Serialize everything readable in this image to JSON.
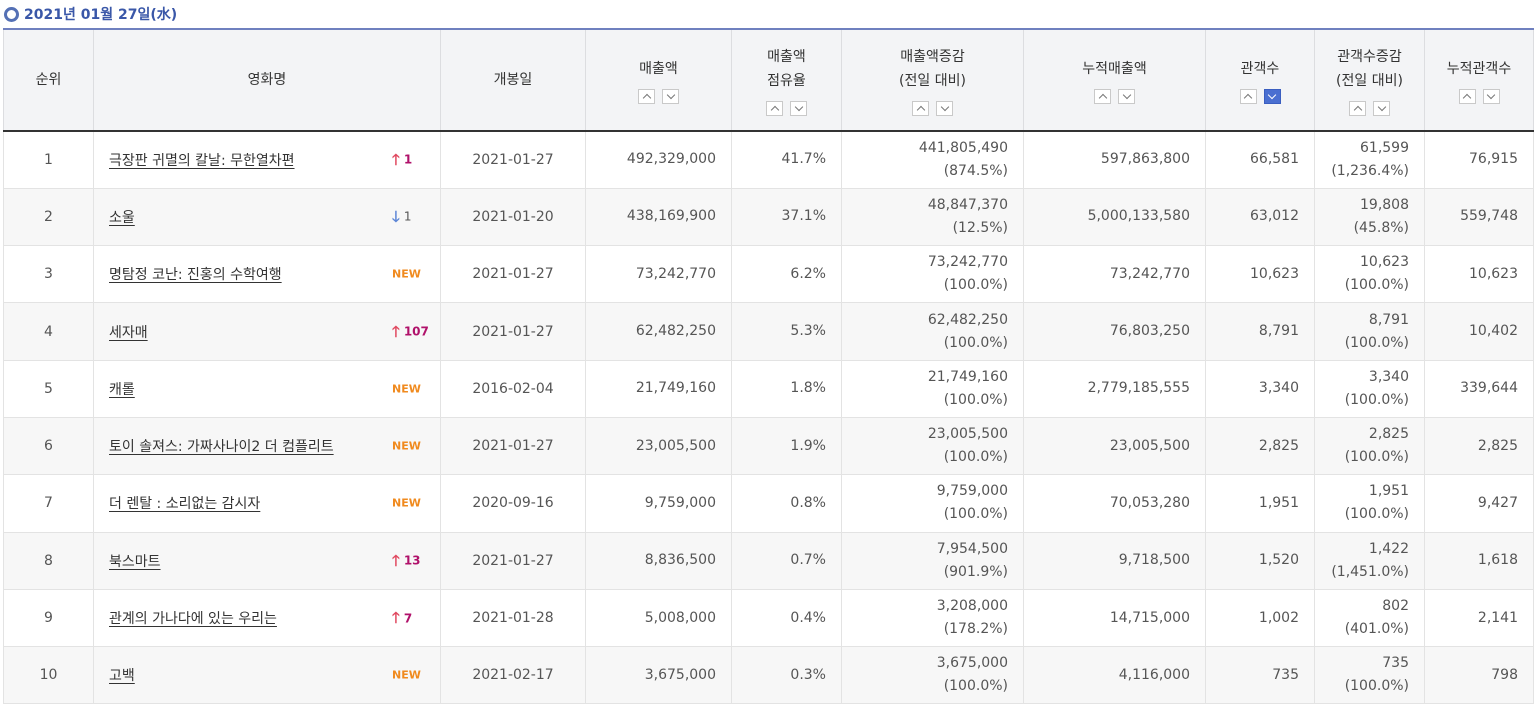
{
  "date_label": "2021년 01월 27일(水)",
  "columns": {
    "rank": "순위",
    "title": "영화명",
    "open_date": "개봉일",
    "sales": "매출액",
    "share_1": "매출액",
    "share_2": "점유율",
    "sales_diff_1": "매출액증감",
    "sales_diff_2": "(전일 대비)",
    "cum_sales": "누적매출액",
    "audience": "관객수",
    "aud_diff_1": "관객수증감",
    "aud_diff_2": "(전일 대비)",
    "cum_audience": "누적관객수"
  },
  "icons": {
    "sort_up": "chevron-up-icon",
    "sort_down": "chevron-down-icon",
    "rank_up": "arrow-up-icon",
    "rank_down": "arrow-down-icon"
  },
  "colors": {
    "accent_blue": "#3a57a8",
    "active_sort": "#4a6fd1",
    "rank_up_arrow": "#e0485f",
    "rank_up_num": "#b0116a",
    "rank_down_arrow": "#5d86d6",
    "new_badge": "#f08a1e"
  },
  "active_sort_column": "audience",
  "rows": [
    {
      "rank": "1",
      "title": "극장판 귀멸의 칼날: 무한열차편",
      "change_type": "up",
      "change_arrow": "🡑",
      "change_value": "1",
      "open_date": "2021-01-27",
      "sales": "492,329,000",
      "share": "41.7%",
      "sales_diff": "441,805,490",
      "sales_diff_pct": "(874.5%)",
      "cum_sales": "597,863,800",
      "audience": "66,581",
      "aud_diff": "61,599",
      "aud_diff_pct": "(1,236.4%)",
      "cum_audience": "76,915"
    },
    {
      "rank": "2",
      "title": "소울",
      "change_type": "down",
      "change_arrow": "🡓",
      "change_value": "1",
      "open_date": "2021-01-20",
      "sales": "438,169,900",
      "share": "37.1%",
      "sales_diff": "48,847,370",
      "sales_diff_pct": "(12.5%)",
      "cum_sales": "5,000,133,580",
      "audience": "63,012",
      "aud_diff": "19,808",
      "aud_diff_pct": "(45.8%)",
      "cum_audience": "559,748"
    },
    {
      "rank": "3",
      "title": "명탐정 코난: 진홍의 수학여행",
      "change_type": "new",
      "change_arrow": "",
      "change_value": "NEW",
      "open_date": "2021-01-27",
      "sales": "73,242,770",
      "share": "6.2%",
      "sales_diff": "73,242,770",
      "sales_diff_pct": "(100.0%)",
      "cum_sales": "73,242,770",
      "audience": "10,623",
      "aud_diff": "10,623",
      "aud_diff_pct": "(100.0%)",
      "cum_audience": "10,623"
    },
    {
      "rank": "4",
      "title": "세자매",
      "change_type": "up",
      "change_arrow": "🡑",
      "change_value": "107",
      "open_date": "2021-01-27",
      "sales": "62,482,250",
      "share": "5.3%",
      "sales_diff": "62,482,250",
      "sales_diff_pct": "(100.0%)",
      "cum_sales": "76,803,250",
      "audience": "8,791",
      "aud_diff": "8,791",
      "aud_diff_pct": "(100.0%)",
      "cum_audience": "10,402"
    },
    {
      "rank": "5",
      "title": "캐롤",
      "change_type": "new",
      "change_arrow": "",
      "change_value": "NEW",
      "open_date": "2016-02-04",
      "sales": "21,749,160",
      "share": "1.8%",
      "sales_diff": "21,749,160",
      "sales_diff_pct": "(100.0%)",
      "cum_sales": "2,779,185,555",
      "audience": "3,340",
      "aud_diff": "3,340",
      "aud_diff_pct": "(100.0%)",
      "cum_audience": "339,644"
    },
    {
      "rank": "6",
      "title": "토이 솔져스: 가짜사나이2 더 컴플리트",
      "change_type": "new",
      "change_arrow": "",
      "change_value": "NEW",
      "open_date": "2021-01-27",
      "sales": "23,005,500",
      "share": "1.9%",
      "sales_diff": "23,005,500",
      "sales_diff_pct": "(100.0%)",
      "cum_sales": "23,005,500",
      "audience": "2,825",
      "aud_diff": "2,825",
      "aud_diff_pct": "(100.0%)",
      "cum_audience": "2,825"
    },
    {
      "rank": "7",
      "title": "더 렌탈 : 소리없는 감시자",
      "change_type": "new",
      "change_arrow": "",
      "change_value": "NEW",
      "open_date": "2020-09-16",
      "sales": "9,759,000",
      "share": "0.8%",
      "sales_diff": "9,759,000",
      "sales_diff_pct": "(100.0%)",
      "cum_sales": "70,053,280",
      "audience": "1,951",
      "aud_diff": "1,951",
      "aud_diff_pct": "(100.0%)",
      "cum_audience": "9,427"
    },
    {
      "rank": "8",
      "title": "북스마트",
      "change_type": "up",
      "change_arrow": "🡑",
      "change_value": "13",
      "open_date": "2021-01-27",
      "sales": "8,836,500",
      "share": "0.7%",
      "sales_diff": "7,954,500",
      "sales_diff_pct": "(901.9%)",
      "cum_sales": "9,718,500",
      "audience": "1,520",
      "aud_diff": "1,422",
      "aud_diff_pct": "(1,451.0%)",
      "cum_audience": "1,618"
    },
    {
      "rank": "9",
      "title": "관계의 가나다에 있는 우리는",
      "change_type": "up",
      "change_arrow": "🡑",
      "change_value": "7",
      "open_date": "2021-01-28",
      "sales": "5,008,000",
      "share": "0.4%",
      "sales_diff": "3,208,000",
      "sales_diff_pct": "(178.2%)",
      "cum_sales": "14,715,000",
      "audience": "1,002",
      "aud_diff": "802",
      "aud_diff_pct": "(401.0%)",
      "cum_audience": "2,141"
    },
    {
      "rank": "10",
      "title": "고백",
      "change_type": "new",
      "change_arrow": "",
      "change_value": "NEW",
      "open_date": "2021-02-17",
      "sales": "3,675,000",
      "share": "0.3%",
      "sales_diff": "3,675,000",
      "sales_diff_pct": "(100.0%)",
      "cum_sales": "4,116,000",
      "audience": "735",
      "aud_diff": "735",
      "aud_diff_pct": "(100.0%)",
      "cum_audience": "798"
    }
  ]
}
